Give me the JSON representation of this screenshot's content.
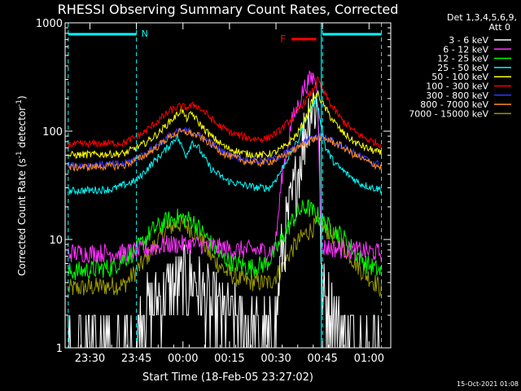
{
  "chart_data": {
    "type": "line",
    "title": "RHESSI Observing Summary Count Rates, Corrected",
    "xlabel": "Start Time (18-Feb-05 23:27:02)",
    "ylabel_main": "Corrected Count Rate (s",
    "ylabel_sup1": "-1",
    "ylabel_mid": " detector",
    "ylabel_sup2": "-1",
    "ylabel_end": ")",
    "yscale": "log",
    "ylim": [
      1,
      1000
    ],
    "xlim_minutes": [
      -5,
      100
    ],
    "x_ticks": [
      {
        "label": "23:30",
        "minute": 3
      },
      {
        "label": "23:45",
        "minute": 18
      },
      {
        "label": "00:00",
        "minute": 33
      },
      {
        "label": "00:15",
        "minute": 48
      },
      {
        "label": "00:30",
        "minute": 63
      },
      {
        "label": "00:45",
        "minute": 78
      },
      {
        "label": "01:00",
        "minute": 93
      }
    ],
    "y_ticks": [
      {
        "label": "1",
        "value": 1
      },
      {
        "label": "10",
        "value": 10
      },
      {
        "label": "100",
        "value": 100
      },
      {
        "label": "1000",
        "value": 1000
      }
    ],
    "legend_header": [
      "Det 1,3,4,5,6,9,",
      "Att 0"
    ],
    "series": [
      {
        "name": "3 - 6 keV",
        "color": "#ffffff",
        "points": [
          [
            -4,
            1
          ],
          [
            17,
            1
          ],
          [
            20,
            2
          ],
          [
            26,
            3
          ],
          [
            33,
            4
          ],
          [
            37,
            4
          ],
          [
            41,
            2.5
          ],
          [
            46,
            2
          ],
          [
            52,
            1.6
          ],
          [
            58,
            1.3
          ],
          [
            62,
            1.2
          ],
          [
            63,
            2
          ],
          [
            65,
            8
          ],
          [
            68,
            20
          ],
          [
            71,
            60
          ],
          [
            74,
            170
          ],
          [
            76,
            180
          ],
          [
            77,
            120
          ],
          [
            77.6,
            3
          ],
          [
            80,
            2.6
          ],
          [
            84,
            1.5
          ],
          [
            88,
            1.2
          ],
          [
            92,
            1
          ],
          [
            97,
            1
          ]
        ]
      },
      {
        "name": "6 - 12 keV",
        "color": "#ff33ff",
        "points": [
          [
            -4,
            7.5
          ],
          [
            14,
            7.5
          ],
          [
            20,
            8
          ],
          [
            28,
            9
          ],
          [
            33,
            9
          ],
          [
            38,
            9
          ],
          [
            44,
            8.5
          ],
          [
            50,
            8
          ],
          [
            56,
            8
          ],
          [
            60,
            7.8
          ],
          [
            62,
            8
          ],
          [
            63,
            10
          ],
          [
            65,
            40
          ],
          [
            68,
            120
          ],
          [
            70,
            170
          ],
          [
            72,
            250
          ],
          [
            74,
            300
          ],
          [
            75.5,
            320
          ],
          [
            76.5,
            200
          ],
          [
            77.6,
            8.5
          ],
          [
            80,
            8.4
          ],
          [
            86,
            8
          ],
          [
            92,
            7.8
          ],
          [
            97,
            7.5
          ]
        ]
      },
      {
        "name": "12 - 25 keV",
        "color": "#00ff00",
        "points": [
          [
            -4,
            5
          ],
          [
            10,
            5.5
          ],
          [
            18,
            8
          ],
          [
            23,
            12
          ],
          [
            28,
            15
          ],
          [
            32,
            16
          ],
          [
            36,
            15
          ],
          [
            40,
            11
          ],
          [
            45,
            7
          ],
          [
            50,
            6
          ],
          [
            55,
            5.5
          ],
          [
            60,
            6
          ],
          [
            63,
            8
          ],
          [
            67,
            13
          ],
          [
            70,
            18
          ],
          [
            73,
            20
          ],
          [
            76,
            17
          ],
          [
            80,
            13
          ],
          [
            84,
            11
          ],
          [
            88,
            8
          ],
          [
            92,
            6
          ],
          [
            97,
            5
          ]
        ]
      },
      {
        "name": "25 - 50 keV",
        "color": "#00ffff",
        "points": [
          [
            -4,
            28
          ],
          [
            10,
            29
          ],
          [
            18,
            35
          ],
          [
            23,
            50
          ],
          [
            28,
            70
          ],
          [
            31,
            90
          ],
          [
            34,
            60
          ],
          [
            36,
            80
          ],
          [
            38,
            70
          ],
          [
            42,
            45
          ],
          [
            47,
            35
          ],
          [
            52,
            32
          ],
          [
            57,
            30
          ],
          [
            61,
            30
          ],
          [
            64,
            40
          ],
          [
            68,
            65
          ],
          [
            70,
            80
          ],
          [
            72,
            120
          ],
          [
            74,
            160
          ],
          [
            76,
            200
          ],
          [
            77.5,
            120
          ],
          [
            79,
            70
          ],
          [
            82,
            50
          ],
          [
            86,
            40
          ],
          [
            90,
            33
          ],
          [
            94,
            30
          ],
          [
            97,
            29
          ]
        ]
      },
      {
        "name": "50 - 100 keV",
        "color": "#ffff00",
        "points": [
          [
            -4,
            60
          ],
          [
            14,
            62
          ],
          [
            20,
            75
          ],
          [
            25,
            95
          ],
          [
            29,
            125
          ],
          [
            31,
            140
          ],
          [
            32.5,
            160
          ],
          [
            34,
            130
          ],
          [
            36,
            145
          ],
          [
            38,
            120
          ],
          [
            42,
            90
          ],
          [
            47,
            70
          ],
          [
            53,
            62
          ],
          [
            58,
            60
          ],
          [
            62,
            62
          ],
          [
            66,
            72
          ],
          [
            70,
            95
          ],
          [
            73,
            140
          ],
          [
            75,
            200
          ],
          [
            76.5,
            220
          ],
          [
            78,
            180
          ],
          [
            81,
            130
          ],
          [
            84,
            100
          ],
          [
            88,
            80
          ],
          [
            92,
            70
          ],
          [
            97,
            62
          ]
        ]
      },
      {
        "name": "100 - 300 keV",
        "color": "#ff0000",
        "points": [
          [
            -4,
            75
          ],
          [
            14,
            78
          ],
          [
            20,
            95
          ],
          [
            25,
            125
          ],
          [
            29,
            155
          ],
          [
            32,
            170
          ],
          [
            34,
            165
          ],
          [
            37,
            175
          ],
          [
            40,
            150
          ],
          [
            44,
            115
          ],
          [
            49,
            95
          ],
          [
            55,
            85
          ],
          [
            60,
            85
          ],
          [
            64,
            100
          ],
          [
            68,
            130
          ],
          [
            71,
            170
          ],
          [
            73,
            200
          ],
          [
            75,
            240
          ],
          [
            76.5,
            300
          ],
          [
            78,
            240
          ],
          [
            81,
            170
          ],
          [
            84,
            130
          ],
          [
            88,
            100
          ],
          [
            92,
            85
          ],
          [
            97,
            75
          ]
        ]
      },
      {
        "name": "300 - 800 keV",
        "color": "#3333ff",
        "points": [
          [
            -4,
            48
          ],
          [
            14,
            50
          ],
          [
            20,
            60
          ],
          [
            25,
            75
          ],
          [
            29,
            92
          ],
          [
            32,
            100
          ],
          [
            35,
            100
          ],
          [
            38,
            92
          ],
          [
            42,
            78
          ],
          [
            47,
            62
          ],
          [
            53,
            55
          ],
          [
            58,
            53
          ],
          [
            62,
            55
          ],
          [
            66,
            62
          ],
          [
            70,
            72
          ],
          [
            74,
            85
          ],
          [
            77,
            90
          ],
          [
            80,
            85
          ],
          [
            84,
            75
          ],
          [
            88,
            63
          ],
          [
            92,
            55
          ],
          [
            97,
            48
          ]
        ]
      },
      {
        "name": "800 - 7000 keV",
        "color": "#ff8c1a",
        "points": [
          [
            -4,
            46
          ],
          [
            14,
            48
          ],
          [
            20,
            58
          ],
          [
            25,
            73
          ],
          [
            29,
            90
          ],
          [
            32,
            98
          ],
          [
            35,
            97
          ],
          [
            38,
            90
          ],
          [
            42,
            76
          ],
          [
            47,
            60
          ],
          [
            53,
            53
          ],
          [
            58,
            51
          ],
          [
            62,
            53
          ],
          [
            66,
            60
          ],
          [
            70,
            70
          ],
          [
            74,
            83
          ],
          [
            77,
            88
          ],
          [
            80,
            83
          ],
          [
            84,
            73
          ],
          [
            88,
            61
          ],
          [
            92,
            53
          ],
          [
            97,
            46
          ]
        ]
      },
      {
        "name": "7000 - 15000 keV",
        "color": "#999900",
        "points": [
          [
            -4,
            3.5
          ],
          [
            14,
            3.8
          ],
          [
            20,
            6
          ],
          [
            24,
            9
          ],
          [
            28,
            12.5
          ],
          [
            31,
            14
          ],
          [
            34,
            13.5
          ],
          [
            38,
            11
          ],
          [
            42,
            7
          ],
          [
            47,
            5
          ],
          [
            52,
            4.2
          ],
          [
            57,
            4
          ],
          [
            61,
            4
          ],
          [
            64,
            5
          ],
          [
            68,
            8
          ],
          [
            72,
            11
          ],
          [
            76,
            13.5
          ],
          [
            79,
            12.5
          ],
          [
            83,
            10
          ],
          [
            87,
            7
          ],
          [
            91,
            5
          ],
          [
            95,
            4
          ],
          [
            97,
            3.5
          ]
        ]
      }
    ],
    "annotations": {
      "night_label": "N",
      "flare_label": "F",
      "night_intervals": [
        [
          -4,
          18
        ],
        [
          78,
          97
        ]
      ],
      "flare_interval": [
        68,
        76
      ],
      "saa_lines": [
        77.6
      ]
    },
    "footer_date": "15-Oct-2021 01:08"
  }
}
